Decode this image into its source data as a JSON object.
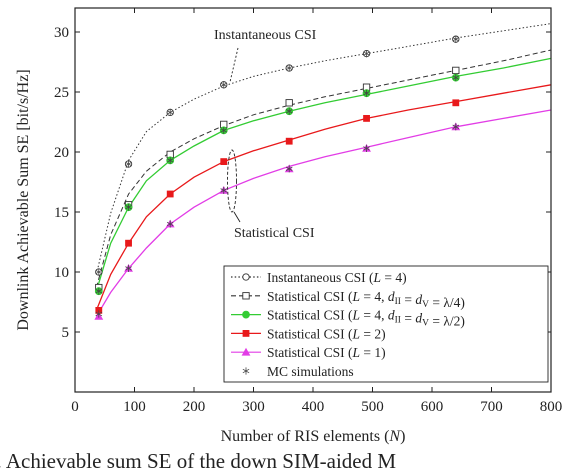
{
  "chart_data": {
    "type": "line",
    "xlabel": "Number of RIS elements (N)",
    "ylabel": "Downlink Achievable Sum SE [bit/s/Hz]",
    "xlim": [
      0,
      800
    ],
    "ylim": [
      0,
      32
    ],
    "x_ticks": [
      0,
      100,
      200,
      300,
      400,
      500,
      600,
      700,
      800
    ],
    "y_ticks": [
      5,
      10,
      15,
      20,
      25,
      30
    ],
    "grid": false,
    "legend_position": "bottom-right",
    "annotations": [
      "Instantaneous CSI",
      "Statistical CSI"
    ],
    "caption_fragment": "2. Achievable sum SE of the down SIM-aided M",
    "series": [
      {
        "name": "Instantaneous CSI (L = 4)",
        "style": "dotted",
        "color": "#333333",
        "marker": "circle-open",
        "curve_x": [
          36,
          60,
          90,
          120,
          160,
          200,
          250,
          300,
          360,
          420,
          490,
          560,
          640,
          720,
          800
        ],
        "curve_y": [
          9.8,
          14.9,
          19.3,
          21.7,
          23.3,
          24.4,
          25.5,
          26.3,
          27.0,
          27.6,
          28.2,
          28.8,
          29.5,
          30.1,
          30.7
        ],
        "marker_x": [
          40,
          90,
          160,
          250,
          360,
          490,
          640
        ],
        "marker_y": [
          10.0,
          19.0,
          23.3,
          25.6,
          27.0,
          28.2,
          29.4
        ]
      },
      {
        "name": "Statistical CSI (L = 4, d_II = d_V = λ/4)",
        "style": "dashed",
        "color": "#333333",
        "marker": "square-open",
        "curve_x": [
          36,
          60,
          90,
          120,
          160,
          200,
          250,
          300,
          360,
          420,
          490,
          560,
          640,
          720,
          800
        ],
        "curve_y": [
          8.7,
          13.1,
          16.5,
          18.4,
          20.0,
          21.1,
          22.2,
          23.1,
          23.9,
          24.6,
          25.3,
          26.0,
          26.8,
          27.6,
          28.5
        ],
        "marker_x": [
          40,
          90,
          160,
          250,
          360,
          490,
          640
        ],
        "marker_y": [
          8.7,
          15.6,
          19.8,
          22.3,
          24.1,
          25.4,
          26.8
        ]
      },
      {
        "name": "Statistical CSI (L = 4, d_II = d_V = λ/2)",
        "style": "solid",
        "color": "#33cc33",
        "marker": "circle-filled",
        "curve_x": [
          36,
          60,
          90,
          120,
          160,
          200,
          250,
          300,
          360,
          420,
          490,
          560,
          640,
          720,
          800
        ],
        "curve_y": [
          8.4,
          12.4,
          15.4,
          17.6,
          19.3,
          20.5,
          21.8,
          22.6,
          23.4,
          24.1,
          24.8,
          25.5,
          26.3,
          27.0,
          27.8
        ],
        "marker_x": [
          40,
          90,
          160,
          250,
          360,
          490,
          640
        ],
        "marker_y": [
          8.4,
          15.4,
          19.3,
          21.8,
          23.4,
          24.9,
          26.2
        ]
      },
      {
        "name": "Statistical CSI (L = 2)",
        "style": "solid",
        "color": "#e8191b",
        "marker": "square-filled",
        "curve_x": [
          36,
          60,
          90,
          120,
          160,
          200,
          250,
          300,
          360,
          420,
          490,
          560,
          640,
          720,
          800
        ],
        "curve_y": [
          6.8,
          9.8,
          12.4,
          14.6,
          16.5,
          17.9,
          19.2,
          20.1,
          21.0,
          21.9,
          22.8,
          23.5,
          24.2,
          24.9,
          25.6
        ],
        "marker_x": [
          40,
          90,
          160,
          250,
          360,
          490,
          640
        ],
        "marker_y": [
          6.8,
          12.4,
          16.5,
          19.2,
          20.9,
          22.8,
          24.1
        ]
      },
      {
        "name": "Statistical CSI (L = 1)",
        "style": "solid",
        "color": "#e23de6",
        "marker": "triangle-filled",
        "curve_x": [
          36,
          60,
          90,
          120,
          160,
          200,
          250,
          300,
          360,
          420,
          490,
          560,
          640,
          720,
          800
        ],
        "curve_y": [
          6.3,
          8.3,
          10.3,
          12.0,
          14.0,
          15.4,
          16.8,
          17.8,
          18.8,
          19.6,
          20.4,
          21.2,
          22.1,
          22.8,
          23.5
        ],
        "marker_x": [
          40,
          90,
          160,
          250,
          360,
          490,
          640
        ],
        "marker_y": [
          6.3,
          10.3,
          14.0,
          16.8,
          18.6,
          20.3,
          22.1
        ]
      },
      {
        "name": "MC simulations",
        "style": "none",
        "color": "#444444",
        "marker": "asterisk",
        "marker_x": [
          40,
          90,
          160,
          250,
          360,
          490,
          640,
          40,
          90,
          160,
          250,
          360,
          490,
          640,
          40,
          90,
          160,
          250,
          360,
          490,
          640
        ],
        "marker_y": [
          10.0,
          19.0,
          23.3,
          25.6,
          27.0,
          28.2,
          29.4,
          8.4,
          15.4,
          19.3,
          21.8,
          23.4,
          24.9,
          26.2,
          6.5,
          10.3,
          14.0,
          16.8,
          18.6,
          20.3,
          22.1
        ]
      }
    ],
    "legend_labels": [
      "Instantaneous CSI (L = 4)",
      "Statistical CSI (L = 4, d_II = d_V = λ/4)",
      "Statistical CSI (L = 4, d_II = d_V = λ/2)",
      "Statistical CSI (L = 2)",
      "Statistical CSI (L = 1)",
      "MC simulations"
    ]
  }
}
